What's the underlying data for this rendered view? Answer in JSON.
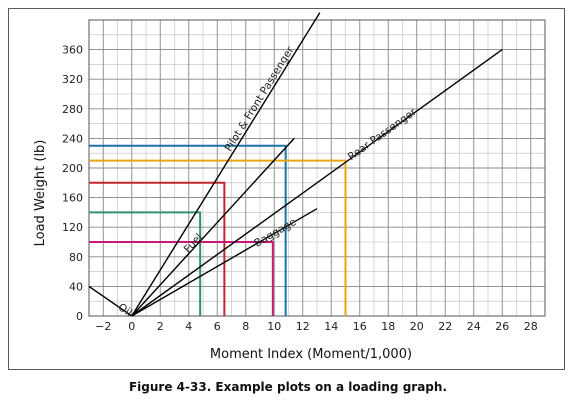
{
  "chart_data": {
    "type": "line",
    "title": "",
    "xlabel": "Moment Index (Moment/1,000)",
    "ylabel": "Load Weight (lb)",
    "xlim": [
      -3,
      29
    ],
    "ylim": [
      0,
      400
    ],
    "x_ticks": [
      -2,
      0,
      2,
      4,
      6,
      8,
      10,
      12,
      14,
      16,
      18,
      20,
      22,
      24,
      26,
      28
    ],
    "x_tick_labels": [
      "−2",
      "0",
      "2",
      "4",
      "6",
      "8",
      "10",
      "12",
      "14",
      "16",
      "18",
      "20",
      "22",
      "24",
      "26",
      "28"
    ],
    "y_ticks": [
      0,
      40,
      80,
      120,
      160,
      200,
      240,
      280,
      320,
      360
    ],
    "y_tick_labels": [
      "0",
      "40",
      "80",
      "120",
      "160",
      "200",
      "240",
      "280",
      "320",
      "360"
    ],
    "grid": true,
    "series": [
      {
        "name": "Pilot & Front Passenger",
        "x": [
          0,
          13.2
        ],
        "y": [
          0,
          410
        ],
        "color": "#000000"
      },
      {
        "name": "Fuel",
        "x": [
          0,
          11.4
        ],
        "y": [
          0,
          240
        ],
        "color": "#000000"
      },
      {
        "name": "Rear Passenger",
        "x": [
          0,
          26
        ],
        "y": [
          0,
          360
        ],
        "color": "#000000"
      },
      {
        "name": "Baggage",
        "x": [
          0,
          13
        ],
        "y": [
          0,
          145
        ],
        "color": "#000000"
      },
      {
        "name": "Oil",
        "x": [
          -3,
          0
        ],
        "y": [
          40,
          0
        ],
        "color": "#000000"
      }
    ],
    "example_plots": [
      {
        "x": 10.8,
        "y": 230,
        "color": "#1a73a8"
      },
      {
        "x": 15,
        "y": 210,
        "color": "#e8a317"
      },
      {
        "x": 6.5,
        "y": 180,
        "color": "#c0272d"
      },
      {
        "x": 4.8,
        "y": 140,
        "color": "#2e9271"
      },
      {
        "x": 9.9,
        "y": 100,
        "color": "#c8197b"
      }
    ]
  },
  "caption": "Figure 4-33. Example plots on a loading graph."
}
